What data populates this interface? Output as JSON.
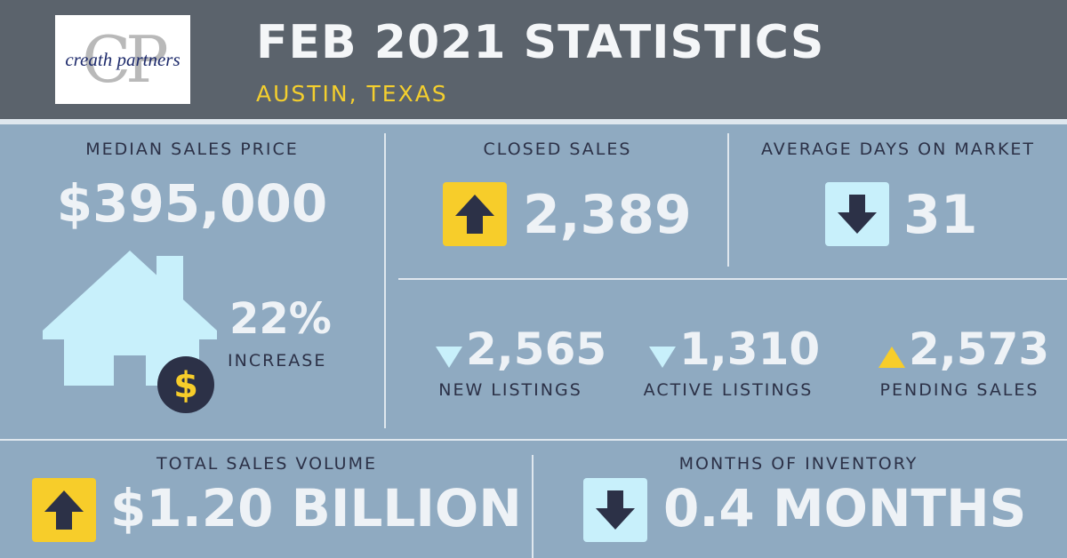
{
  "header": {
    "title": "FEB 2021 STATISTICS",
    "subtitle": "AUSTIN, TEXAS",
    "logo_monogram": "CP",
    "logo_text": "creath partners"
  },
  "median": {
    "label": "MEDIAN SALES PRICE",
    "value": "$395,000",
    "change_pct": "22%",
    "change_label": "INCREASE",
    "house_icon": "house-icon",
    "dollar_icon": "dollar-coin-icon"
  },
  "closed": {
    "label": "CLOSED SALES",
    "value": "2,389",
    "trend": "up"
  },
  "dom": {
    "label": "AVERAGE DAYS ON MARKET",
    "value": "31",
    "trend": "down"
  },
  "listings": [
    {
      "value": "2,565",
      "label": "NEW LISTINGS",
      "trend": "down"
    },
    {
      "value": "1,310",
      "label": "ACTIVE LISTINGS",
      "trend": "down"
    },
    {
      "value": "2,573",
      "label": "PENDING SALES",
      "trend": "up"
    }
  ],
  "volume": {
    "label": "TOTAL SALES VOLUME",
    "value": "$1.20 BILLION",
    "trend": "up"
  },
  "inventory": {
    "label": "MONTHS OF INVENTORY",
    "value": "0.4 MONTHS",
    "trend": "down"
  },
  "colors": {
    "background": "#8faac1",
    "header": "#5b636c",
    "accent_yellow": "#f7cd2a",
    "accent_cyan": "#c8f0fb",
    "text_dark": "#2c3147",
    "text_light": "#eef2f6"
  }
}
